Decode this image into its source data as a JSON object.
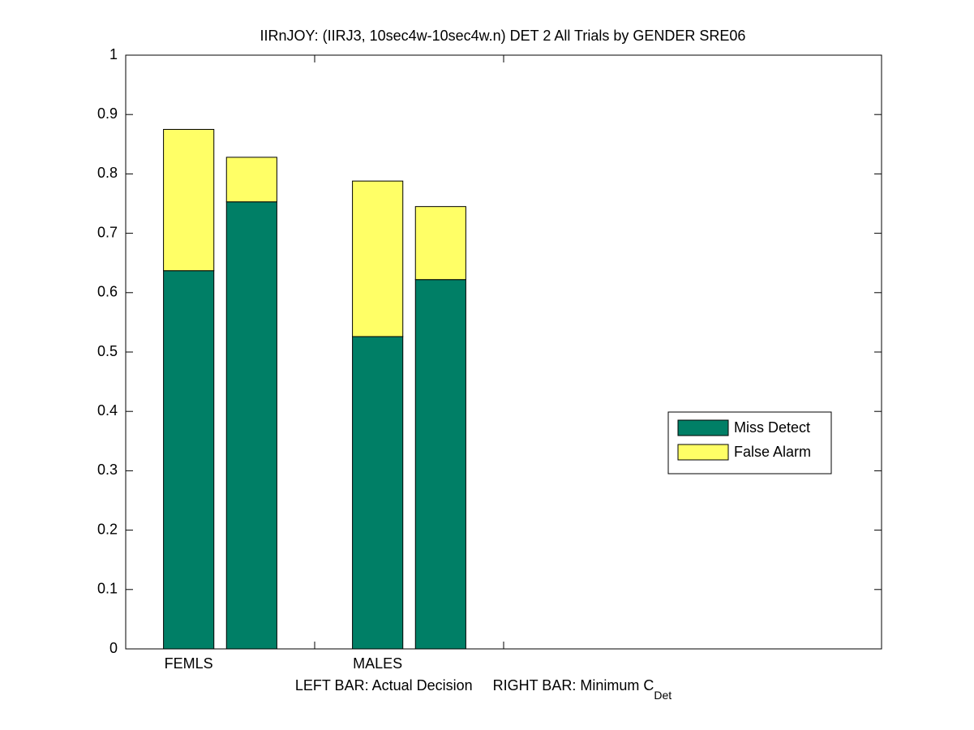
{
  "chart_data": {
    "type": "bar",
    "stacked": true,
    "title": "IIRnJOY: (IIRJ3, 10sec4w-10sec4w.n) DET 2 All Trials by GENDER SRE06",
    "xlabel": {
      "text": "LEFT BAR: Actual Decision     RIGHT BAR: Minimum C",
      "subscript": "Det"
    },
    "categories": [
      "FEMLS",
      null,
      "MALES",
      null
    ],
    "series": [
      {
        "name": "Miss Detect",
        "color": "#007f66",
        "values": [
          0.637,
          0.753,
          0.526,
          0.622
        ]
      },
      {
        "name": "False Alarm",
        "color": "#ffff66",
        "values": [
          0.238,
          0.075,
          0.262,
          0.123
        ]
      }
    ],
    "ylim": [
      0,
      1
    ],
    "yticks": [
      0,
      0.1,
      0.2,
      0.3,
      0.4,
      0.5,
      0.6,
      0.7,
      0.8,
      0.9,
      1
    ],
    "grid": false,
    "legend": "right"
  }
}
